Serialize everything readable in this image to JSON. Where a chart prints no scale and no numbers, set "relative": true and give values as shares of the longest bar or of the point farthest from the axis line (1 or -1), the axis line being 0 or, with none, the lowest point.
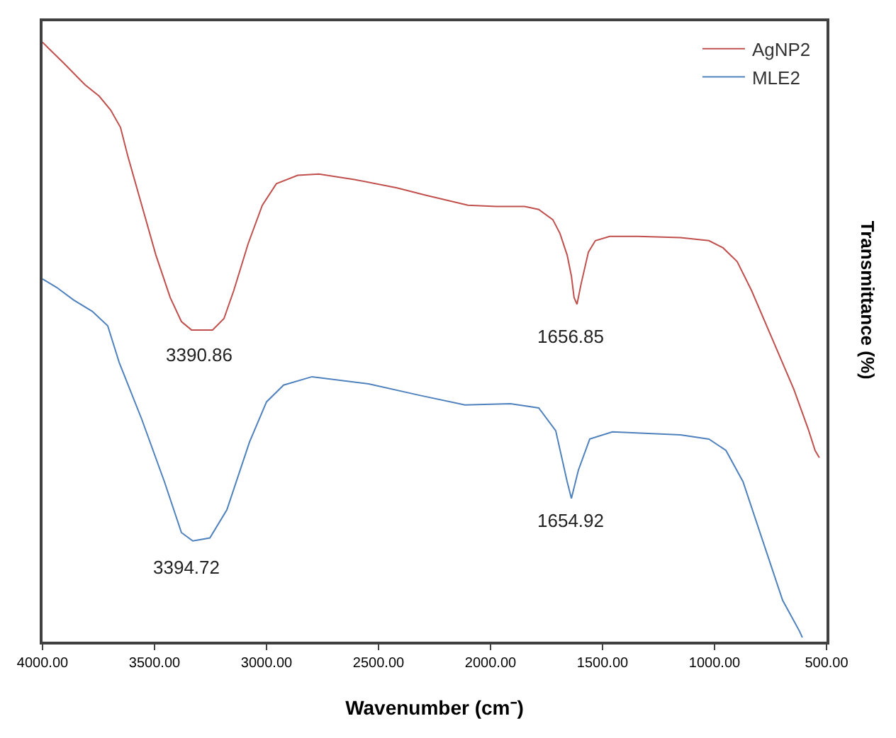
{
  "chart_data": {
    "type": "line",
    "relative": true,
    "xlabel": "Wavenumber (cm⁻)",
    "ylabel": "Transmittance (%)",
    "xlim": [
      4000,
      500
    ],
    "xticks": [
      {
        "value": 4000,
        "label": "4000.00"
      },
      {
        "value": 3500,
        "label": "3500.00"
      },
      {
        "value": 3000,
        "label": "3000.00"
      },
      {
        "value": 2500,
        "label": "2500.00"
      },
      {
        "value": 2000,
        "label": "2000.00"
      },
      {
        "value": 1500,
        "label": "1500.00"
      },
      {
        "value": 1000,
        "label": "1000.00"
      },
      {
        "value": 500,
        "label": "500.00"
      }
    ],
    "legend": "top right",
    "line_style": "solid",
    "marker": "none",
    "tick_labels": "x",
    "series": [
      {
        "name": "AgNP2",
        "color": "#c0504d",
        "x": [
          4000,
          3968,
          3905,
          3842,
          3810,
          3747,
          3696,
          3652,
          3620,
          3557,
          3494,
          3430,
          3380,
          3335,
          3241,
          3190,
          3146,
          3082,
          3019,
          2956,
          2861,
          2766,
          2608,
          2418,
          2291,
          2101,
          1975,
          1848,
          1785,
          1722,
          1690,
          1658,
          1639,
          1627,
          1614,
          1595,
          1563,
          1532,
          1468,
          1342,
          1152,
          1025,
          962,
          899,
          835,
          741,
          646,
          614,
          582,
          551,
          532
        ],
        "values": [
          1.0,
          0.988,
          0.965,
          0.941,
          0.929,
          0.91,
          0.887,
          0.858,
          0.811,
          0.728,
          0.645,
          0.574,
          0.534,
          0.52,
          0.52,
          0.539,
          0.586,
          0.664,
          0.728,
          0.764,
          0.778,
          0.78,
          0.771,
          0.757,
          0.745,
          0.728,
          0.726,
          0.726,
          0.721,
          0.704,
          0.681,
          0.645,
          0.61,
          0.574,
          0.563,
          0.598,
          0.65,
          0.669,
          0.676,
          0.676,
          0.674,
          0.669,
          0.657,
          0.634,
          0.586,
          0.504,
          0.421,
          0.388,
          0.355,
          0.319,
          0.307
        ]
      },
      {
        "name": "MLE2",
        "color": "#4f81bd",
        "x": [
          4000,
          3937,
          3861,
          3778,
          3709,
          3658,
          3557,
          3456,
          3380,
          3329,
          3253,
          3177,
          3076,
          3000,
          2924,
          2797,
          2544,
          2317,
          2114,
          1911,
          1785,
          1709,
          1658,
          1639,
          1608,
          1557,
          1456,
          1152,
          1025,
          949,
          873,
          772,
          696,
          620,
          608
        ],
        "values": [
          0.605,
          0.591,
          0.57,
          0.551,
          0.527,
          0.466,
          0.371,
          0.267,
          0.182,
          0.168,
          0.173,
          0.22,
          0.333,
          0.4,
          0.428,
          0.442,
          0.43,
          0.411,
          0.395,
          0.397,
          0.39,
          0.352,
          0.267,
          0.239,
          0.286,
          0.338,
          0.35,
          0.345,
          0.338,
          0.319,
          0.267,
          0.154,
          0.069,
          0.017,
          0.007
        ]
      }
    ],
    "annotations": [
      "3390.86",
      "1656.85",
      "3394.72",
      "1654.92"
    ]
  }
}
